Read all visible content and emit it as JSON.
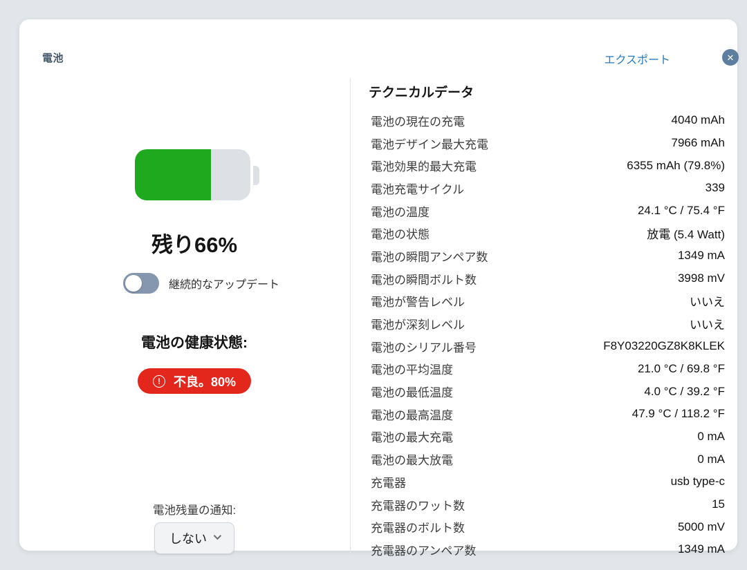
{
  "header": {
    "title": "電池",
    "export_label": "エクスポート",
    "close_glyph": "✕"
  },
  "left_panel": {
    "battery_percent": 66,
    "remaining_label": "残り66%",
    "toggle_label": "継続的なアップデート",
    "toggle_on": false,
    "health_heading": "電池の健康状態:",
    "health_badge_icon": "!",
    "health_badge_label": "不良。80%",
    "notify_label": "電池残量の通知:",
    "notify_selected_value": "しない"
  },
  "technical": {
    "heading": "テクニカルデータ",
    "rows": [
      {
        "label": "電池の現在の充電",
        "value": "4040 mAh"
      },
      {
        "label": "電池デザイン最大充電",
        "value": "7966 mAh"
      },
      {
        "label": "電池効果的最大充電",
        "value": "6355 mAh (79.8%)"
      },
      {
        "label": "電池充電サイクル",
        "value": "339"
      },
      {
        "label": "電池の温度",
        "value": "24.1 °C / 75.4 °F"
      },
      {
        "label": "電池の状態",
        "value": "放電 (5.4 Watt)"
      },
      {
        "label": "電池の瞬間アンペア数",
        "value": "1349 mA"
      },
      {
        "label": "電池の瞬間ボルト数",
        "value": "3998 mV"
      },
      {
        "label": "電池が警告レベル",
        "value": "いいえ"
      },
      {
        "label": "電池が深刻レベル",
        "value": "いいえ"
      },
      {
        "label": "電池のシリアル番号",
        "value": "F8Y03220GZ8K8KLEK"
      },
      {
        "label": "電池の平均温度",
        "value": "21.0 °C / 69.8 °F"
      },
      {
        "label": "電池の最低温度",
        "value": "4.0 °C / 39.2 °F"
      },
      {
        "label": "電池の最高温度",
        "value": "47.9 °C / 118.2 °F"
      },
      {
        "label": "電池の最大充電",
        "value": "0 mA"
      },
      {
        "label": "電池の最大放電",
        "value": "0 mA"
      },
      {
        "label": "充電器",
        "value": "usb type-c"
      },
      {
        "label": "充電器のワット数",
        "value": "15"
      },
      {
        "label": "充電器のボルト数",
        "value": "5000 mV"
      },
      {
        "label": "充電器のアンペア数",
        "value": "1349 mA"
      }
    ]
  },
  "colors": {
    "accent_blue": "#2879bd",
    "close_button_bg": "#5d7e9f",
    "battery_green": "#1fa91f",
    "battery_track": "#dde1e5",
    "badge_red": "#e3271d",
    "toggle_track": "#8497ae",
    "page_background": "#e2e6ea"
  }
}
